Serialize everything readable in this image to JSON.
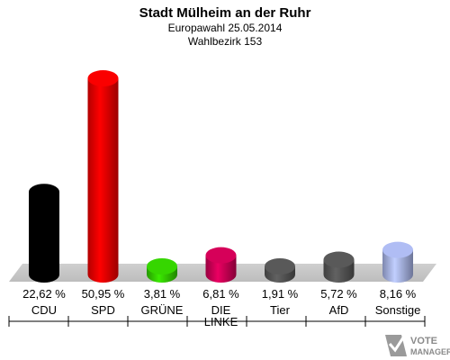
{
  "chart_data": {
    "type": "bar",
    "title": "Stadt Mülheim an der Ruhr",
    "subtitle_lines": [
      "Europawahl 25.05.2014",
      "Wahlbezirk 153"
    ],
    "categories": [
      "CDU",
      "SPD",
      "GRÜNE",
      "DIE LINKE",
      "Tier",
      "AfD",
      "Sonstige"
    ],
    "category_lines": [
      [
        "CDU"
      ],
      [
        "SPD"
      ],
      [
        "GRÜNE"
      ],
      [
        "DIE",
        "LINKE"
      ],
      [
        "Tier"
      ],
      [
        "AfD"
      ],
      [
        "Sonstige"
      ]
    ],
    "values": [
      22.62,
      50.95,
      3.81,
      6.81,
      1.91,
      5.72,
      8.16
    ],
    "value_labels": [
      "22,62 %",
      "50,95 %",
      "3,81 %",
      "6,81 %",
      "1,91 %",
      "5,72 %",
      "8,16 %"
    ],
    "colors": [
      "#000000",
      "#ee0000",
      "#33cc00",
      "#cc0055",
      "#555555",
      "#555555",
      "#a8b4e8"
    ],
    "ylim": [
      0,
      55
    ],
    "grid": false,
    "legend": "none"
  },
  "logo": {
    "line1": "VOTE",
    "line2": "MANAGER"
  }
}
